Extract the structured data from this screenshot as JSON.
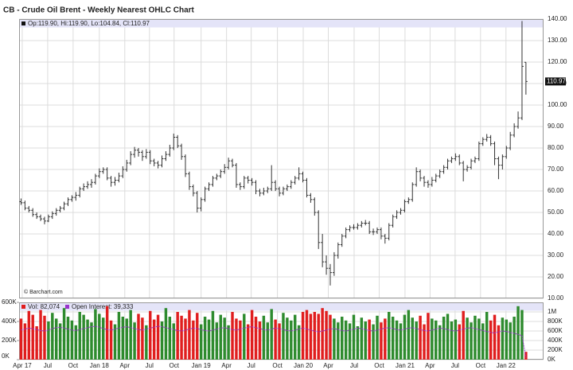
{
  "chart_data": {
    "type": "ohlc",
    "title": "CB - Crude Oil Brent - Weekly Nearest OHLC Chart",
    "info": "Op:119.90, Hi:119.90, Lo:104.84, Cl:110.97",
    "watermark": "© Barchart.com",
    "last_label": "110.97",
    "bar_color": "#333333",
    "grid": true,
    "xlim": [
      0,
      134
    ],
    "xticks": [
      {
        "value": 0.8,
        "label": "Apr 17"
      },
      {
        "value": 7.3,
        "label": "Jul"
      },
      {
        "value": 13.8,
        "label": "Oct"
      },
      {
        "value": 20.5,
        "label": "Jan 18"
      },
      {
        "value": 27,
        "label": "Apr"
      },
      {
        "value": 33.3,
        "label": "Jul"
      },
      {
        "value": 39.6,
        "label": "Oct"
      },
      {
        "value": 46.5,
        "label": "Jan 19"
      },
      {
        "value": 53,
        "label": "Apr"
      },
      {
        "value": 59.3,
        "label": "Jul"
      },
      {
        "value": 66,
        "label": "Oct"
      },
      {
        "value": 72.6,
        "label": "Jan 20"
      },
      {
        "value": 79,
        "label": "Apr"
      },
      {
        "value": 85.6,
        "label": "Jul"
      },
      {
        "value": 92,
        "label": "Oct"
      },
      {
        "value": 98.6,
        "label": "Jan 21"
      },
      {
        "value": 105,
        "label": "Apr"
      },
      {
        "value": 111.4,
        "label": "Jul"
      },
      {
        "value": 117.9,
        "label": "Oct"
      },
      {
        "value": 124.4,
        "label": "Jan 22"
      }
    ],
    "ylim": [
      10,
      140
    ],
    "yticks": [
      {
        "value": 10,
        "label": "10.00"
      },
      {
        "value": 20,
        "label": "20.00"
      },
      {
        "value": 30,
        "label": "30.00"
      },
      {
        "value": 40,
        "label": "40.00"
      },
      {
        "value": 50,
        "label": "50.00"
      },
      {
        "value": 60,
        "label": "60.00"
      },
      {
        "value": 70,
        "label": "70.00"
      },
      {
        "value": 80,
        "label": "80.00"
      },
      {
        "value": 90,
        "label": "90.00"
      },
      {
        "value": 100,
        "label": "100.00"
      },
      {
        "value": 110,
        "label": "110.00"
      },
      {
        "value": 120,
        "label": "120.00"
      },
      {
        "value": 130,
        "label": "130.00"
      },
      {
        "value": 140,
        "label": "140.00"
      }
    ],
    "ohlc": [
      [
        55,
        56.5,
        53.5,
        54.5
      ],
      [
        54.5,
        55.5,
        51,
        52
      ],
      [
        52,
        53,
        50,
        51
      ],
      [
        51,
        52,
        48,
        49
      ],
      [
        49,
        50,
        47,
        48
      ],
      [
        48,
        49,
        46,
        47
      ],
      [
        47,
        48,
        44.5,
        46
      ],
      [
        46,
        49,
        45.5,
        48
      ],
      [
        48,
        50.5,
        47,
        49.5
      ],
      [
        49.5,
        52,
        48.5,
        51
      ],
      [
        51,
        53,
        50,
        52
      ],
      [
        52,
        55,
        51,
        54
      ],
      [
        54,
        57,
        53,
        56
      ],
      [
        56,
        58,
        55,
        57
      ],
      [
        57,
        59.5,
        55.5,
        58
      ],
      [
        58,
        62,
        57,
        61
      ],
      [
        61,
        63.5,
        60,
        62
      ],
      [
        62,
        64.5,
        61,
        63
      ],
      [
        63,
        65.5,
        61.5,
        64
      ],
      [
        64,
        68,
        63,
        67
      ],
      [
        67,
        70.5,
        66,
        69
      ],
      [
        69,
        71,
        68,
        70
      ],
      [
        70,
        71,
        65,
        66
      ],
      [
        66,
        67,
        62,
        64
      ],
      [
        64,
        66.5,
        62.5,
        65
      ],
      [
        65,
        68.5,
        64,
        67
      ],
      [
        67,
        71.5,
        66,
        70
      ],
      [
        70,
        74.5,
        69,
        73
      ],
      [
        73,
        78.5,
        72,
        77
      ],
      [
        77,
        80.5,
        75.5,
        79
      ],
      [
        79,
        80,
        76,
        78
      ],
      [
        78,
        79,
        74,
        76
      ],
      [
        76,
        79.5,
        75,
        78
      ],
      [
        78,
        79,
        72.5,
        74
      ],
      [
        74,
        75,
        71.5,
        73
      ],
      [
        73,
        74,
        70.5,
        72
      ],
      [
        72,
        76.5,
        71,
        75
      ],
      [
        75,
        78.5,
        74,
        77
      ],
      [
        77,
        81.5,
        76,
        80
      ],
      [
        80,
        86.7,
        79,
        85
      ],
      [
        85,
        86,
        80,
        81
      ],
      [
        81,
        82,
        74.5,
        76
      ],
      [
        76,
        77,
        66.5,
        68
      ],
      [
        68,
        69,
        60.5,
        62
      ],
      [
        62,
        63,
        57.5,
        59
      ],
      [
        59,
        60,
        50,
        52
      ],
      [
        52,
        57,
        50.5,
        56
      ],
      [
        56,
        62,
        55,
        61
      ],
      [
        61,
        64,
        60,
        63
      ],
      [
        63,
        67,
        62,
        66
      ],
      [
        66,
        68,
        65,
        67
      ],
      [
        67,
        70,
        66,
        69
      ],
      [
        69,
        72.5,
        68,
        71
      ],
      [
        71,
        75.5,
        70,
        74
      ],
      [
        74,
        75,
        71,
        72
      ],
      [
        72,
        73,
        61.5,
        63
      ],
      [
        63,
        64,
        60.5,
        62
      ],
      [
        62,
        67,
        61,
        66
      ],
      [
        66,
        67,
        63.5,
        65
      ],
      [
        65,
        66,
        62.5,
        64
      ],
      [
        64,
        65,
        58.5,
        60
      ],
      [
        60,
        61,
        57.5,
        59
      ],
      [
        59,
        61.5,
        58,
        60
      ],
      [
        60,
        62,
        59,
        61
      ],
      [
        61,
        72,
        60,
        64
      ],
      [
        64,
        65,
        60,
        61
      ],
      [
        61,
        62,
        57.5,
        59
      ],
      [
        59,
        62,
        58,
        61
      ],
      [
        61,
        63,
        60,
        62
      ],
      [
        62,
        65,
        61,
        64
      ],
      [
        64,
        67,
        63,
        66
      ],
      [
        66,
        71,
        65,
        68
      ],
      [
        68,
        69,
        64,
        65
      ],
      [
        65,
        66,
        57,
        58
      ],
      [
        58,
        59,
        54.5,
        56
      ],
      [
        56,
        57,
        48.5,
        50
      ],
      [
        50,
        51,
        33,
        36
      ],
      [
        36,
        40,
        24.5,
        27
      ],
      [
        27,
        30,
        21,
        24
      ],
      [
        24,
        26,
        16,
        22
      ],
      [
        22,
        31.5,
        20.5,
        30
      ],
      [
        30,
        36,
        28.5,
        35
      ],
      [
        35,
        40,
        34,
        39
      ],
      [
        39,
        43,
        38,
        42
      ],
      [
        42,
        44,
        41,
        43
      ],
      [
        43,
        44.5,
        42,
        43
      ],
      [
        43,
        45,
        42,
        44
      ],
      [
        44,
        46,
        43,
        45
      ],
      [
        45,
        46.5,
        44,
        45
      ],
      [
        45,
        46,
        40,
        41
      ],
      [
        41,
        42.5,
        39.5,
        41
      ],
      [
        41,
        43,
        40,
        42
      ],
      [
        42,
        43,
        37.5,
        39
      ],
      [
        39,
        40,
        35.5,
        38
      ],
      [
        38,
        45,
        37,
        44
      ],
      [
        44,
        49,
        43,
        48
      ],
      [
        48,
        51,
        47,
        50
      ],
      [
        50,
        52,
        49,
        51
      ],
      [
        51,
        56,
        50,
        55
      ],
      [
        55,
        57,
        54,
        56
      ],
      [
        56,
        64,
        55,
        63
      ],
      [
        63,
        71,
        62,
        69
      ],
      [
        69,
        70,
        64.5,
        66
      ],
      [
        66,
        67,
        62,
        64
      ],
      [
        64,
        65,
        61.5,
        63
      ],
      [
        63,
        66.5,
        62,
        65
      ],
      [
        65,
        68,
        64,
        67
      ],
      [
        67,
        70,
        66,
        69
      ],
      [
        69,
        72,
        68,
        71
      ],
      [
        71,
        75,
        70,
        74
      ],
      [
        74,
        76,
        73,
        75
      ],
      [
        75,
        77.5,
        74,
        76
      ],
      [
        76,
        77,
        72,
        73
      ],
      [
        73,
        74,
        64.5,
        70
      ],
      [
        70,
        72,
        69,
        71
      ],
      [
        71,
        75,
        70,
        74
      ],
      [
        74,
        76,
        73,
        75
      ],
      [
        75,
        83,
        74,
        82
      ],
      [
        82,
        85,
        81,
        84
      ],
      [
        84,
        86.5,
        83,
        85
      ],
      [
        85,
        86,
        81,
        82
      ],
      [
        82,
        83,
        72,
        75
      ],
      [
        75,
        76,
        65.5,
        72
      ],
      [
        72,
        77,
        70,
        76
      ],
      [
        76,
        81,
        75,
        80
      ],
      [
        80,
        87.5,
        79,
        86
      ],
      [
        86,
        91.5,
        85,
        90
      ],
      [
        90,
        97,
        89,
        94
      ],
      [
        94,
        139.1,
        93,
        118
      ],
      [
        119.9,
        119.9,
        104.84,
        110.97
      ]
    ],
    "volume": {
      "legend": "Vol: 82,074",
      "up_color": "#2e8b2e",
      "down_color": "#e01e1e",
      "ylim": [
        0,
        600000
      ],
      "yticks": [
        {
          "value": 0,
          "label": "0K"
        },
        {
          "value": 200000,
          "label": "200K"
        },
        {
          "value": 400000,
          "label": "400K"
        },
        {
          "value": 600000,
          "label": "600K"
        }
      ],
      "values": [
        430000,
        380000,
        510000,
        470000,
        350000,
        520000,
        460000,
        400000,
        490000,
        430000,
        380000,
        540000,
        450000,
        410000,
        360000,
        500000,
        470000,
        420000,
        390000,
        530000,
        480000,
        440000,
        560000,
        410000,
        370000,
        500000,
        450000,
        430000,
        520000,
        390000,
        480000,
        440000,
        360000,
        510000,
        420000,
        470000,
        400000,
        540000,
        450000,
        380000,
        500000,
        460000,
        430000,
        520000,
        410000,
        490000,
        370000,
        450000,
        420000,
        510000,
        390000,
        470000,
        440000,
        360000,
        500000,
        430000,
        410000,
        480000,
        370000,
        520000,
        450000,
        400000,
        460000,
        390000,
        530000,
        420000,
        380000,
        490000,
        440000,
        410000,
        470000,
        360000,
        500000,
        520000,
        480000,
        500000,
        480000,
        540000,
        510000,
        470000,
        430000,
        390000,
        450000,
        410000,
        380000,
        470000,
        350000,
        440000,
        400000,
        420000,
        370000,
        460000,
        390000,
        430000,
        500000,
        450000,
        410000,
        380000,
        470000,
        520000,
        440000,
        400000,
        460000,
        370000,
        490000,
        430000,
        410000,
        360000,
        450000,
        480000,
        400000,
        420000,
        370000,
        510000,
        440000,
        390000,
        460000,
        430000,
        380000,
        500000,
        410000,
        470000,
        360000,
        440000,
        420000,
        390000,
        450000,
        560000,
        520000,
        82074
      ]
    },
    "open_interest": {
      "legend": "Open Interest: 39,333",
      "color": "#9933cc",
      "axis": "y2",
      "y2lim": [
        0,
        1200000
      ],
      "y2ticks": [
        {
          "value": 0,
          "label": "0K"
        },
        {
          "value": 200000,
          "label": "200K"
        },
        {
          "value": 400000,
          "label": "400K"
        },
        {
          "value": 600000,
          "label": "600K"
        },
        {
          "value": 800000,
          "label": "800K"
        },
        {
          "value": 1000000,
          "label": "1M"
        }
      ],
      "values": [
        620000,
        640000,
        660000,
        650000,
        630000,
        610000,
        600000,
        620000,
        650000,
        670000,
        680000,
        660000,
        640000,
        620000,
        610000,
        630000,
        650000,
        670000,
        690000,
        700000,
        680000,
        650000,
        630000,
        620000,
        640000,
        660000,
        680000,
        690000,
        670000,
        650000,
        630000,
        620000,
        640000,
        660000,
        680000,
        700000,
        690000,
        670000,
        650000,
        630000,
        610000,
        600000,
        620000,
        640000,
        660000,
        650000,
        630000,
        610000,
        600000,
        620000,
        640000,
        660000,
        670000,
        650000,
        630000,
        620000,
        640000,
        660000,
        680000,
        690000,
        670000,
        650000,
        630000,
        620000,
        640000,
        660000,
        650000,
        630000,
        610000,
        600000,
        620000,
        640000,
        660000,
        640000,
        620000,
        600000,
        580000,
        600000,
        620000,
        640000,
        650000,
        630000,
        610000,
        600000,
        620000,
        640000,
        660000,
        650000,
        630000,
        610000,
        600000,
        620000,
        640000,
        660000,
        670000,
        650000,
        630000,
        620000,
        640000,
        660000,
        670000,
        650000,
        630000,
        610000,
        600000,
        620000,
        640000,
        660000,
        650000,
        630000,
        610000,
        600000,
        620000,
        640000,
        660000,
        670000,
        650000,
        630000,
        610000,
        590000,
        570000,
        560000,
        580000,
        600000,
        590000,
        570000,
        550000,
        530000,
        500000,
        39333
      ]
    }
  }
}
